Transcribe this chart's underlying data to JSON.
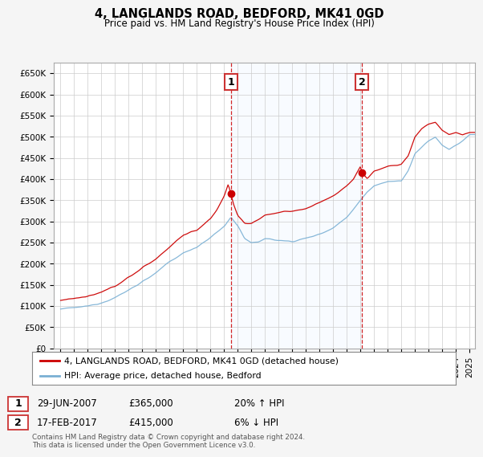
{
  "title": "4, LANGLANDS ROAD, BEDFORD, MK41 0GD",
  "subtitle": "Price paid vs. HM Land Registry's House Price Index (HPI)",
  "ylabel_ticks": [
    "£0",
    "£50K",
    "£100K",
    "£150K",
    "£200K",
    "£250K",
    "£300K",
    "£350K",
    "£400K",
    "£450K",
    "£500K",
    "£550K",
    "£600K",
    "£650K"
  ],
  "ylim": [
    0,
    675000
  ],
  "xlim_start": 1994.5,
  "xlim_end": 2025.4,
  "sale1_x": 2007.49,
  "sale1_y": 365000,
  "sale1_label": "1",
  "sale2_x": 2017.12,
  "sale2_y": 415000,
  "sale2_label": "2",
  "red_color": "#cc0000",
  "blue_color": "#7ab0d4",
  "shade_color": "#ddeeff",
  "annotation1_date": "29-JUN-2007",
  "annotation1_price": "£365,000",
  "annotation1_hpi": "20% ↑ HPI",
  "annotation2_date": "17-FEB-2017",
  "annotation2_price": "£415,000",
  "annotation2_hpi": "6% ↓ HPI",
  "legend1": "4, LANGLANDS ROAD, BEDFORD, MK41 0GD (detached house)",
  "legend2": "HPI: Average price, detached house, Bedford",
  "footer": "Contains HM Land Registry data © Crown copyright and database right 2024.\nThis data is licensed under the Open Government Licence v3.0.",
  "background_color": "#f5f5f5",
  "plot_bg_color": "#ffffff"
}
